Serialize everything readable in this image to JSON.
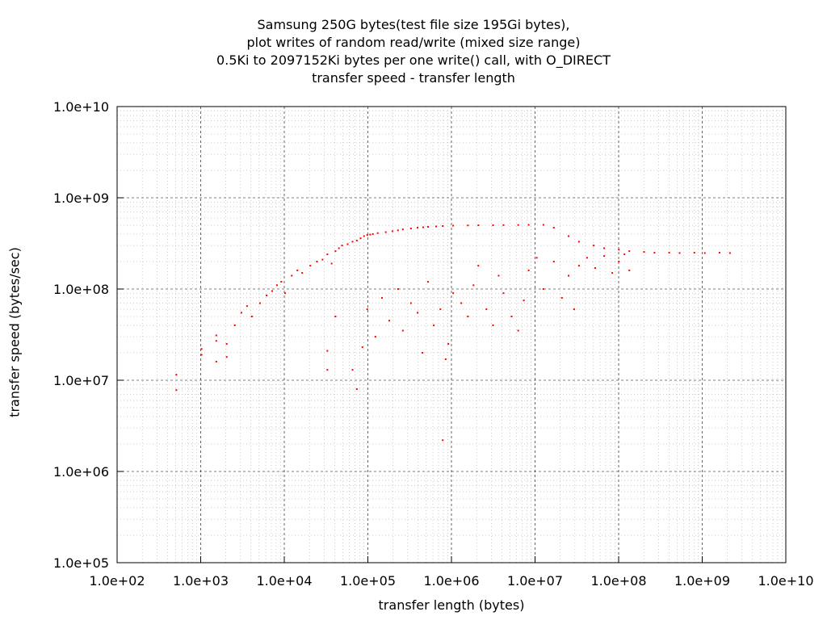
{
  "chart_data": {
    "type": "scatter",
    "title_lines": [
      "Samsung 250G bytes(test file size 195Gi bytes),",
      "plot writes of random read/write (mixed size range)",
      "0.5Ki to 2097152Ki bytes per one write() call, with O_DIRECT",
      "transfer speed - transfer length"
    ],
    "xlabel": "transfer length (bytes)",
    "ylabel": "transfer speed (bytes/sec)",
    "x_scale": "log",
    "y_scale": "log",
    "xlim": [
      100,
      10000000000
    ],
    "ylim": [
      100000,
      10000000000
    ],
    "x_ticks": [
      "1.0e+02",
      "1.0e+03",
      "1.0e+04",
      "1.0e+05",
      "1.0e+06",
      "1.0e+07",
      "1.0e+08",
      "1.0e+09",
      "1.0e+10"
    ],
    "y_ticks": [
      "1.0e+05",
      "1.0e+06",
      "1.0e+07",
      "1.0e+08",
      "1.0e+09",
      "1.0e+10"
    ],
    "grid": true,
    "legend": "none",
    "series": [
      {
        "color": "#ff0000",
        "marker": "dot",
        "points": [
          [
            512,
            7800000
          ],
          [
            512,
            11500000
          ],
          [
            1024,
            22000000
          ],
          [
            1024,
            19000000
          ],
          [
            1536,
            31000000
          ],
          [
            1536,
            27000000
          ],
          [
            1536,
            16000000
          ],
          [
            2048,
            25000000
          ],
          [
            2048,
            18000000
          ],
          [
            2560,
            40000000
          ],
          [
            3072,
            55000000
          ],
          [
            3584,
            65000000
          ],
          [
            4096,
            50000000
          ],
          [
            5120,
            70000000
          ],
          [
            6144,
            85000000
          ],
          [
            7168,
            95000000
          ],
          [
            8192,
            110000000
          ],
          [
            9216,
            120000000
          ],
          [
            10240,
            90000000
          ],
          [
            12288,
            140000000
          ],
          [
            14336,
            160000000
          ],
          [
            16384,
            150000000
          ],
          [
            20480,
            180000000
          ],
          [
            24576,
            200000000
          ],
          [
            28672,
            210000000
          ],
          [
            32768,
            240000000
          ],
          [
            36864,
            190000000
          ],
          [
            40960,
            260000000
          ],
          [
            45056,
            280000000
          ],
          [
            49152,
            300000000
          ],
          [
            57344,
            310000000
          ],
          [
            65536,
            330000000
          ],
          [
            73728,
            340000000
          ],
          [
            81920,
            360000000
          ],
          [
            90112,
            380000000
          ],
          [
            98304,
            390000000
          ],
          [
            106496,
            395000000
          ],
          [
            114688,
            400000000
          ],
          [
            131072,
            410000000
          ],
          [
            163840,
            420000000
          ],
          [
            196608,
            430000000
          ],
          [
            229376,
            440000000
          ],
          [
            262144,
            450000000
          ],
          [
            327680,
            460000000
          ],
          [
            393216,
            470000000
          ],
          [
            458752,
            475000000
          ],
          [
            524288,
            480000000
          ],
          [
            655360,
            485000000
          ],
          [
            786432,
            490000000
          ],
          [
            1048576,
            495000000
          ],
          [
            1572864,
            498000000
          ],
          [
            2097152,
            500000000
          ],
          [
            3145728,
            500000000
          ],
          [
            4194304,
            502000000
          ],
          [
            6291456,
            503000000
          ],
          [
            8388608,
            505000000
          ],
          [
            12582912,
            505000000
          ],
          [
            16777216,
            470000000
          ],
          [
            25165824,
            380000000
          ],
          [
            33554432,
            330000000
          ],
          [
            50331648,
            300000000
          ],
          [
            67108864,
            280000000
          ],
          [
            100663296,
            270000000
          ],
          [
            134217728,
            260000000
          ],
          [
            201326592,
            255000000
          ],
          [
            268435456,
            250000000
          ],
          [
            402653184,
            250000000
          ],
          [
            536870912,
            248000000
          ],
          [
            805306368,
            250000000
          ],
          [
            1073741824,
            248000000
          ],
          [
            1610612736,
            250000000
          ],
          [
            2147483648,
            248000000
          ],
          [
            32768,
            21000000
          ],
          [
            32768,
            13000000
          ],
          [
            40960,
            50000000
          ],
          [
            65536,
            13000000
          ],
          [
            73728,
            8000000
          ],
          [
            86016,
            23000000
          ],
          [
            98304,
            60000000
          ],
          [
            122880,
            30000000
          ],
          [
            147456,
            80000000
          ],
          [
            180224,
            45000000
          ],
          [
            229376,
            100000000
          ],
          [
            262144,
            35000000
          ],
          [
            327680,
            70000000
          ],
          [
            393216,
            55000000
          ],
          [
            450560,
            20000000
          ],
          [
            524288,
            120000000
          ],
          [
            614400,
            40000000
          ],
          [
            737280,
            60000000
          ],
          [
            786432,
            2200000
          ],
          [
            851968,
            17000000
          ],
          [
            917504,
            25000000
          ],
          [
            1048576,
            90000000
          ],
          [
            1310720,
            70000000
          ],
          [
            1572864,
            50000000
          ],
          [
            1835008,
            110000000
          ],
          [
            2097152,
            180000000
          ],
          [
            2621440,
            60000000
          ],
          [
            3145728,
            40000000
          ],
          [
            3670016,
            140000000
          ],
          [
            4194304,
            90000000
          ],
          [
            5242880,
            50000000
          ],
          [
            6291456,
            35000000
          ],
          [
            7340032,
            75000000
          ],
          [
            8388608,
            160000000
          ],
          [
            10485760,
            220000000
          ],
          [
            12582912,
            100000000
          ],
          [
            16777216,
            200000000
          ],
          [
            20971520,
            80000000
          ],
          [
            25165824,
            140000000
          ],
          [
            29360128,
            60000000
          ],
          [
            33554432,
            180000000
          ],
          [
            41943040,
            220000000
          ],
          [
            52428800,
            170000000
          ],
          [
            67108864,
            230000000
          ],
          [
            83886080,
            150000000
          ],
          [
            100663296,
            200000000
          ],
          [
            117440512,
            240000000
          ],
          [
            134217728,
            160000000
          ]
        ]
      }
    ]
  }
}
